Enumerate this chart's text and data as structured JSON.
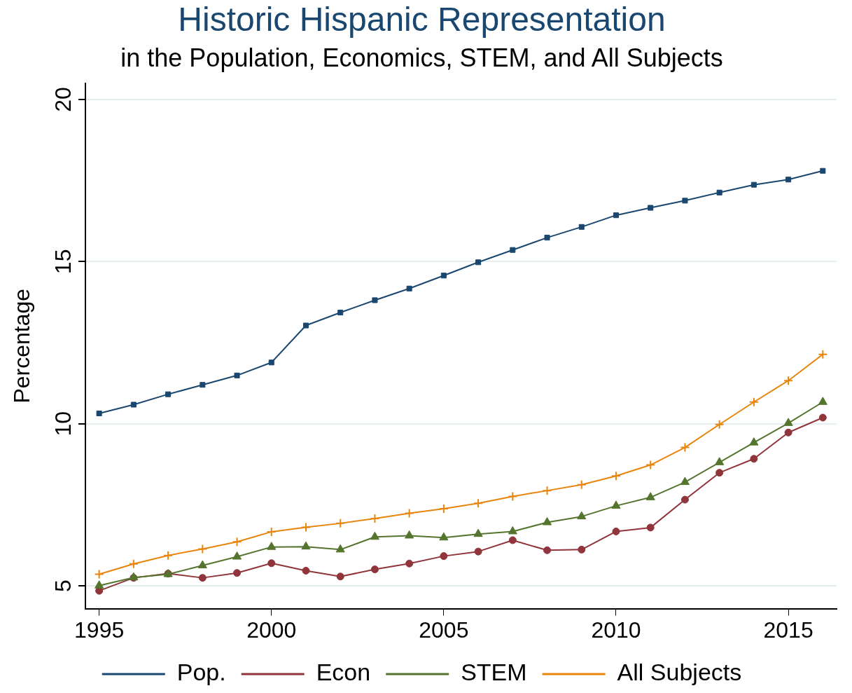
{
  "chart_data": {
    "type": "line",
    "title": "Historic Hispanic Representation",
    "subtitle": "in the Population, Economics, STEM, and All Subjects",
    "ylabel": "Percentage",
    "x": [
      1995,
      1996,
      1997,
      1998,
      1999,
      2000,
      2001,
      2002,
      2003,
      2004,
      2005,
      2006,
      2007,
      2008,
      2009,
      2010,
      2011,
      2012,
      2013,
      2014,
      2015,
      2016
    ],
    "xlim": [
      1994.6,
      2016.4
    ],
    "xticks": [
      1995,
      2000,
      2005,
      2010,
      2015
    ],
    "ylim": [
      4.3,
      20.5
    ],
    "yticks": [
      5,
      10,
      15,
      20
    ],
    "grid": "y",
    "legend": "bottom",
    "series": [
      {
        "name": "Pop.",
        "color": "#1a476f",
        "marker": "square",
        "values": [
          10.32,
          10.59,
          10.91,
          11.2,
          11.49,
          11.89,
          13.03,
          13.43,
          13.81,
          14.17,
          14.57,
          14.98,
          15.36,
          15.74,
          16.07,
          16.43,
          16.66,
          16.88,
          17.13,
          17.37,
          17.53,
          17.8
        ]
      },
      {
        "name": "Econ",
        "color": "#90353b",
        "marker": "circle",
        "values": [
          4.85,
          5.25,
          5.38,
          5.25,
          5.4,
          5.7,
          5.47,
          5.29,
          5.51,
          5.69,
          5.92,
          6.06,
          6.41,
          6.1,
          6.12,
          6.68,
          6.8,
          7.66,
          8.49,
          8.92,
          9.73,
          10.19
        ]
      },
      {
        "name": "STEM",
        "color": "#55752f",
        "marker": "triangle",
        "values": [
          5.01,
          5.26,
          5.36,
          5.63,
          5.9,
          6.2,
          6.21,
          6.12,
          6.51,
          6.55,
          6.49,
          6.6,
          6.68,
          6.96,
          7.14,
          7.47,
          7.73,
          8.2,
          8.81,
          9.42,
          10.02,
          10.67
        ]
      },
      {
        "name": "All Subjects",
        "color": "#e8850c",
        "marker": "cross",
        "values": [
          5.36,
          5.68,
          5.94,
          6.14,
          6.36,
          6.67,
          6.81,
          6.93,
          7.08,
          7.24,
          7.38,
          7.55,
          7.76,
          7.94,
          8.12,
          8.39,
          8.73,
          9.27,
          9.98,
          10.67,
          11.33,
          12.14
        ]
      }
    ]
  }
}
